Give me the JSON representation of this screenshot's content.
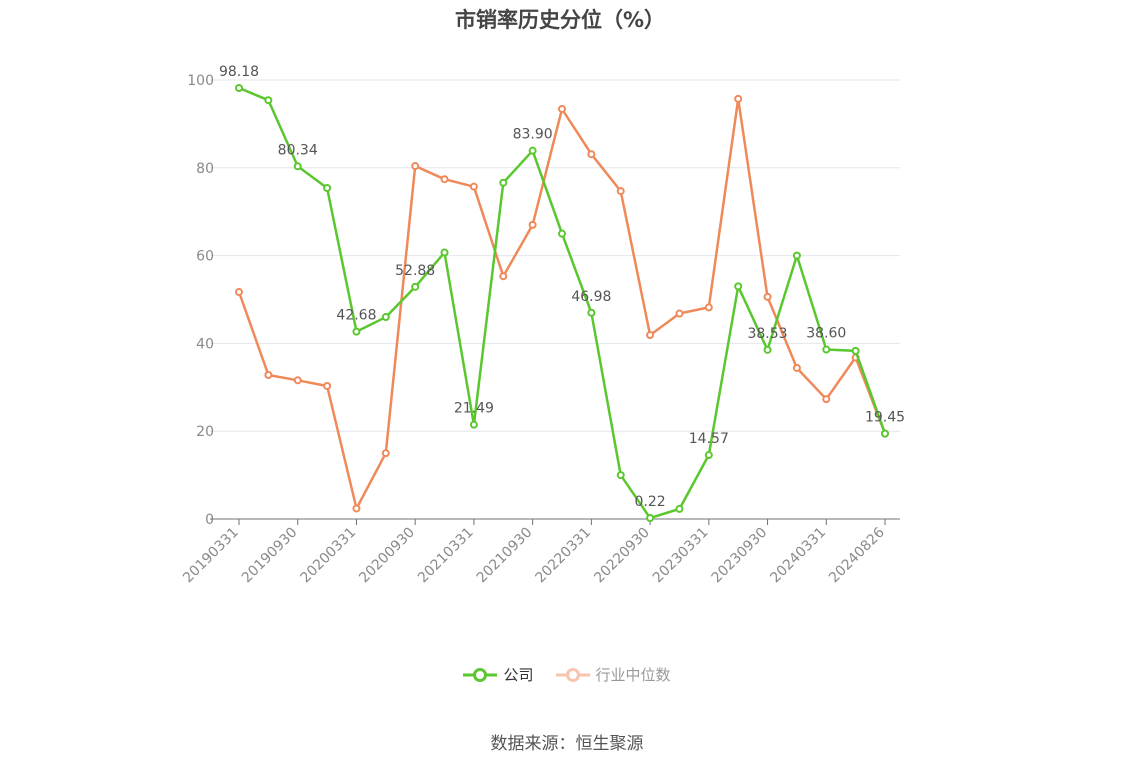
{
  "title": "市销率历史分位（%）",
  "source": "数据来源：恒生聚源",
  "chart_data": {
    "type": "line",
    "ylim": [
      0,
      100
    ],
    "yticks": [
      0,
      20,
      40,
      60,
      80,
      100
    ],
    "grid": true,
    "legend_position": "bottom-center",
    "x_tick_labels": [
      "20190331",
      "20190930",
      "20200331",
      "20200930",
      "20210331",
      "20210930",
      "20220331",
      "20220930",
      "20230331",
      "20230930",
      "20240331",
      "20240826"
    ],
    "x": [
      "20190331",
      "20190630",
      "20190930",
      "20191231",
      "20200331",
      "20200630",
      "20200930",
      "20201231",
      "20210331",
      "20210630",
      "20210930",
      "20211231",
      "20220331",
      "20220630",
      "20220930",
      "20221231",
      "20230331",
      "20230630",
      "20230930",
      "20231231",
      "20240331",
      "20240630",
      "20240826"
    ],
    "series": [
      {
        "name": "公司",
        "color": "#5ac72f",
        "values": [
          98.18,
          95.4,
          80.34,
          75.4,
          42.68,
          46.0,
          52.88,
          60.7,
          21.49,
          76.6,
          83.9,
          65.0,
          46.98,
          10.0,
          0.22,
          2.3,
          14.57,
          53.0,
          38.53,
          60.0,
          38.6,
          38.3,
          19.45
        ],
        "data_labels": {
          "0": "98.18",
          "2": "80.34",
          "4": "42.68",
          "6": "52.88",
          "8": "21.49",
          "10": "83.90",
          "12": "46.98",
          "14": "0.22",
          "16": "14.57",
          "18": "38.53",
          "20": "38.60",
          "22": "19.45"
        }
      },
      {
        "name": "行业中位数",
        "color": "#f0895a",
        "values": [
          51.7,
          32.8,
          31.6,
          30.3,
          2.4,
          15.0,
          80.4,
          77.4,
          75.7,
          55.3,
          67.0,
          93.4,
          83.1,
          74.7,
          41.9,
          46.8,
          48.2,
          95.7,
          50.6,
          34.4,
          27.3,
          36.8,
          19.45
        ]
      }
    ]
  }
}
